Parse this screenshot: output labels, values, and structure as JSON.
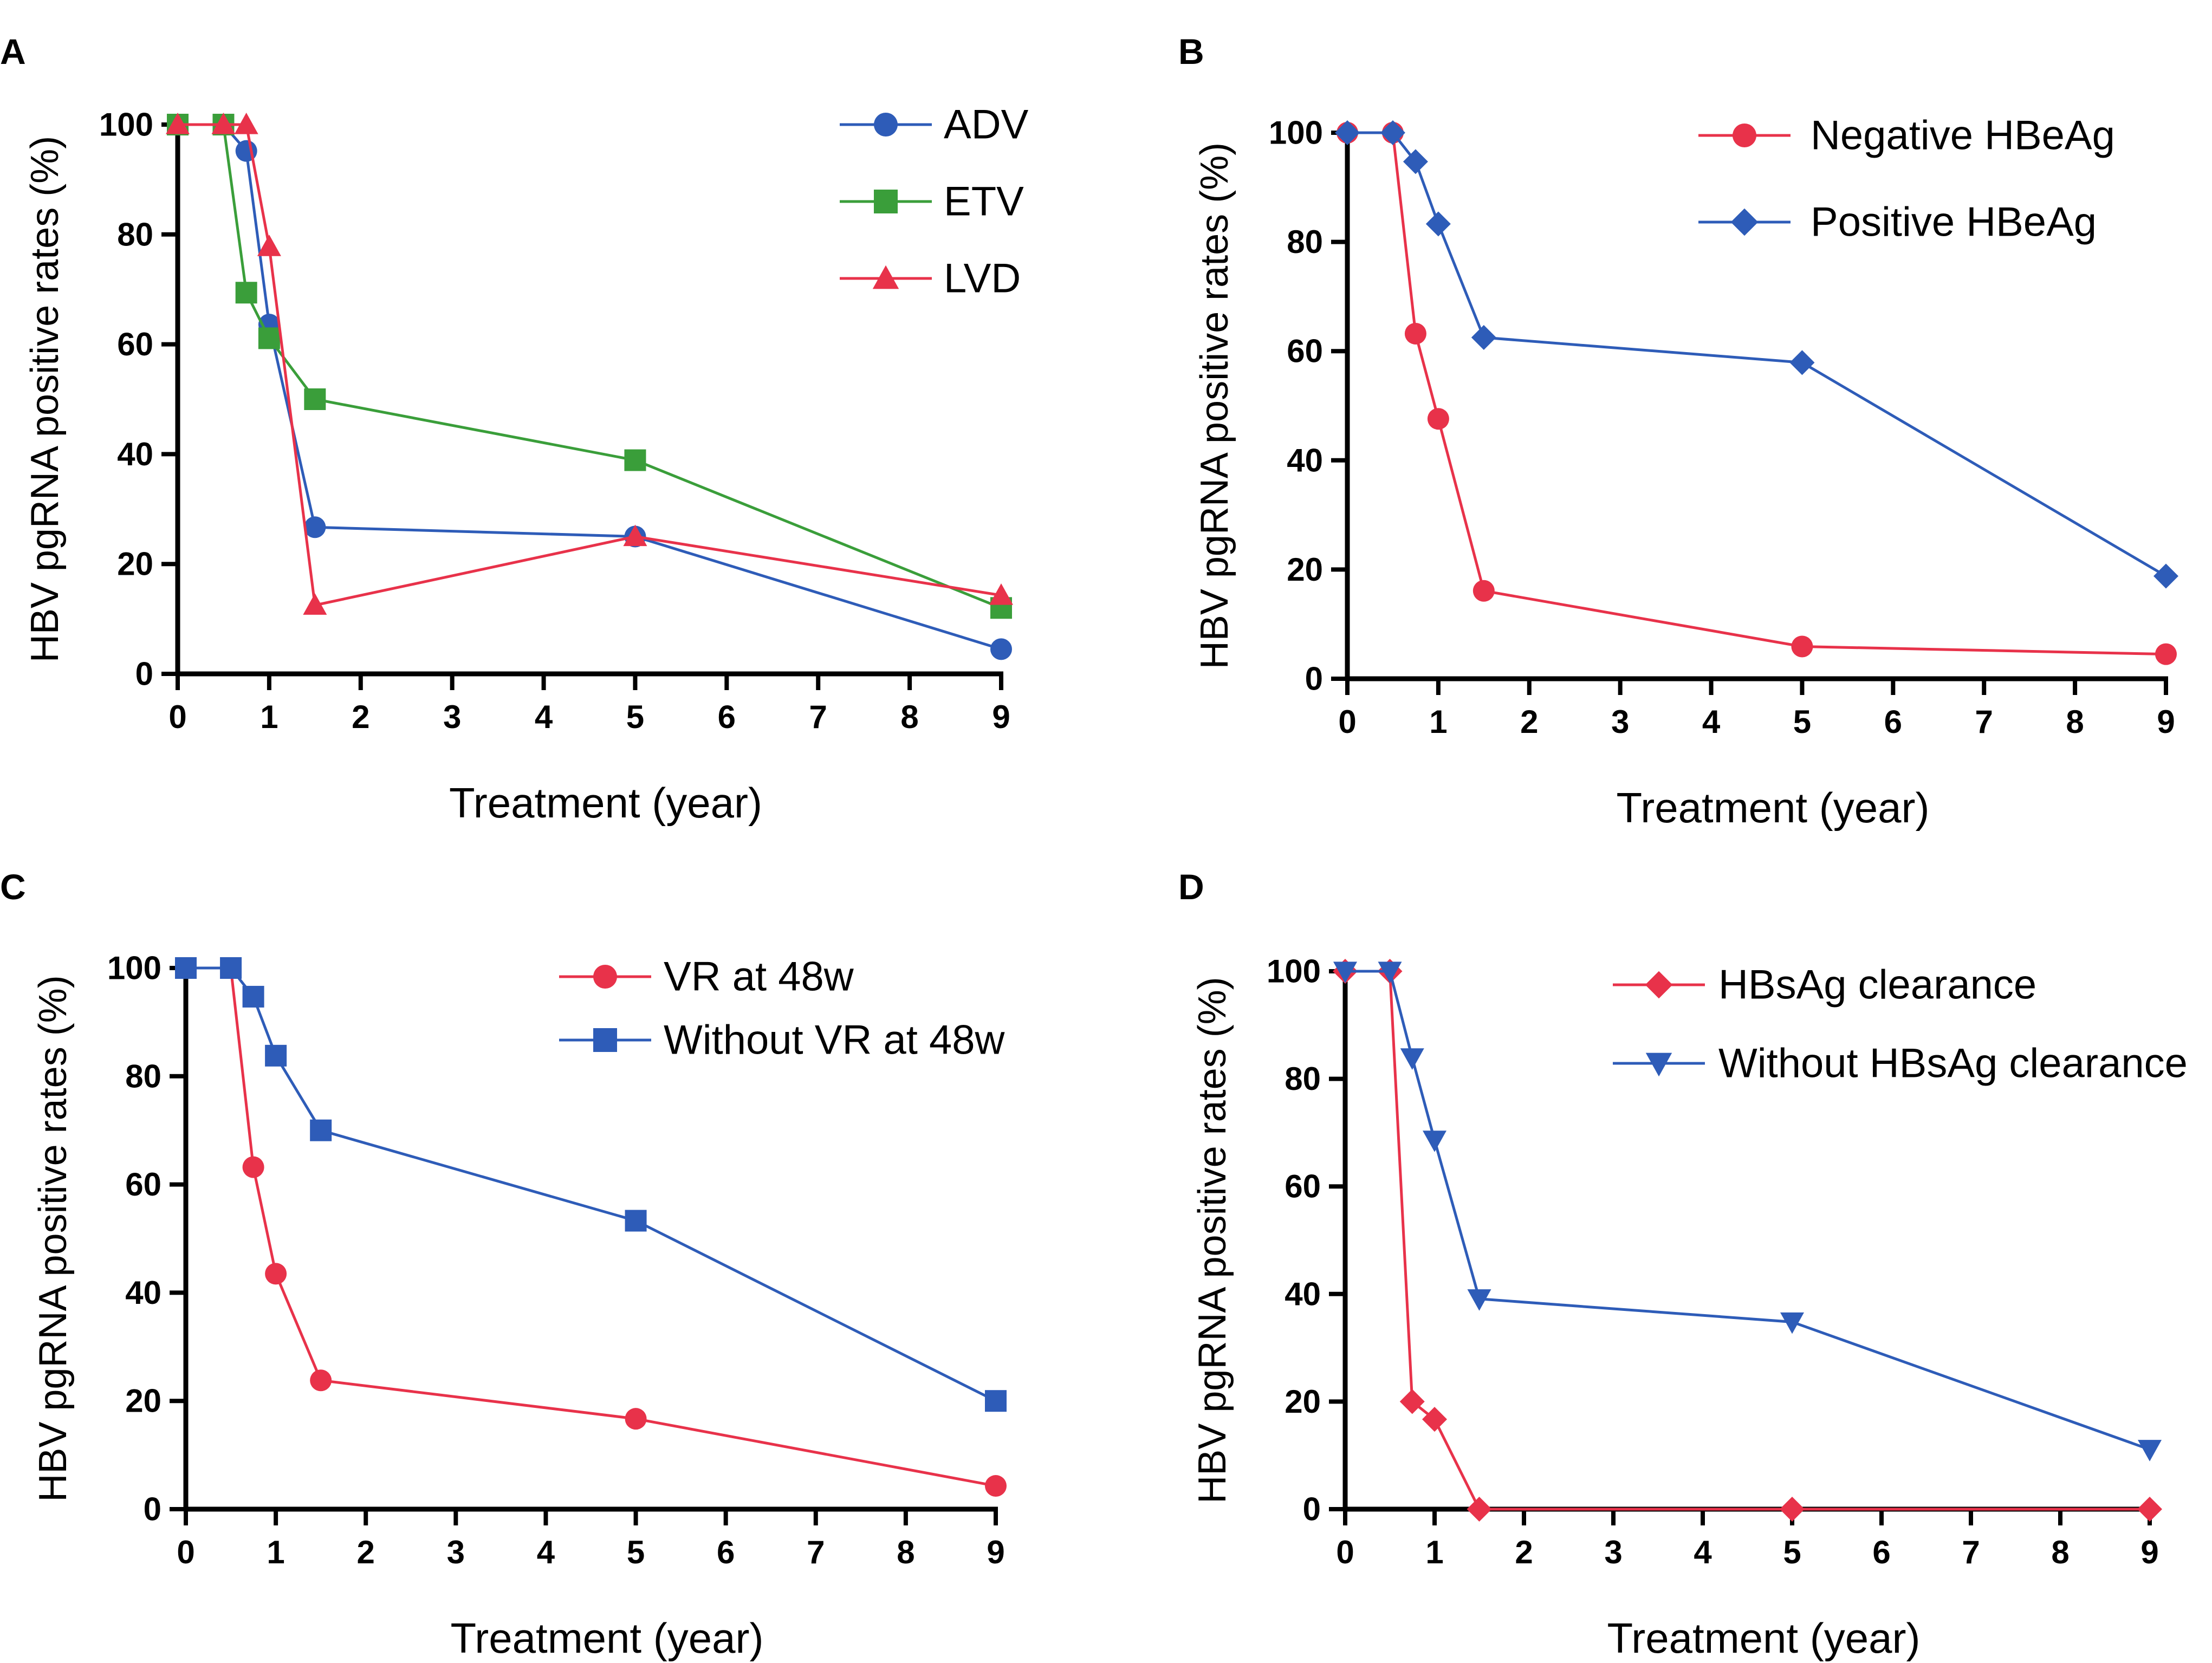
{
  "chart_data": [
    {
      "panel": "A",
      "type": "line",
      "xlabel": "Treatment (year)",
      "ylabel": "HBV pgRNA positive rates  (%)",
      "xlim": [
        0,
        9
      ],
      "ylim": [
        0,
        100
      ],
      "xticks": [
        "0",
        "1",
        "2",
        "3",
        "4",
        "5",
        "6",
        "7",
        "8",
        "9"
      ],
      "yticks": [
        "0",
        "20",
        "40",
        "60",
        "80",
        "100"
      ],
      "legend_position": "top-right",
      "series": [
        {
          "name": "ADV",
          "color": "#2e5cb8",
          "marker": "circle",
          "points": [
            [
              0,
              100
            ],
            [
              0.5,
              100
            ],
            [
              0.75,
              95.2
            ],
            [
              1,
              63.6
            ],
            [
              1.5,
              26.7
            ],
            [
              5,
              25
            ],
            [
              9,
              4.5
            ]
          ]
        },
        {
          "name": "ETV",
          "color": "#3a9e3a",
          "marker": "square",
          "points": [
            [
              0,
              100
            ],
            [
              0.5,
              100
            ],
            [
              0.75,
              69.4
            ],
            [
              1,
              61.1
            ],
            [
              1.5,
              50
            ],
            [
              5,
              38.9
            ],
            [
              9,
              12
            ]
          ]
        },
        {
          "name": "LVD",
          "color": "#e8324a",
          "marker": "triangle-up",
          "points": [
            [
              0,
              100
            ],
            [
              0.5,
              100
            ],
            [
              0.75,
              100
            ],
            [
              1,
              77.8
            ],
            [
              1.5,
              12.5
            ],
            [
              5,
              25
            ],
            [
              9,
              14.3
            ]
          ]
        }
      ]
    },
    {
      "panel": "B",
      "type": "line",
      "xlabel": "Treatment (year)",
      "ylabel": "HBV pgRNA positive rates  (%)",
      "xlim": [
        0,
        9
      ],
      "ylim": [
        0,
        100
      ],
      "xticks": [
        "0",
        "1",
        "2",
        "3",
        "4",
        "5",
        "6",
        "7",
        "8",
        "9"
      ],
      "yticks": [
        "0",
        "20",
        "40",
        "60",
        "80",
        "100"
      ],
      "legend_position": "top-right",
      "series": [
        {
          "name": "Negative HBeAg",
          "color": "#e8324a",
          "marker": "circle",
          "points": [
            [
              0,
              100
            ],
            [
              0.5,
              100
            ],
            [
              0.75,
              63.2
            ],
            [
              1,
              47.6
            ],
            [
              1.5,
              16.1
            ],
            [
              5,
              5.9
            ],
            [
              9,
              4.5
            ]
          ]
        },
        {
          "name": "Positive HBeAg",
          "color": "#2e5cb8",
          "marker": "diamond",
          "points": [
            [
              0,
              100
            ],
            [
              0.5,
              100
            ],
            [
              0.75,
              94.7
            ],
            [
              1,
              83.3
            ],
            [
              1.5,
              62.5
            ],
            [
              5,
              57.9
            ],
            [
              9,
              18.8
            ]
          ]
        }
      ]
    },
    {
      "panel": "C",
      "type": "line",
      "xlabel": "Treatment (year)",
      "ylabel": "HBV pgRNA positive rates  (%)",
      "xlim": [
        0,
        9
      ],
      "ylim": [
        0,
        100
      ],
      "xticks": [
        "0",
        "1",
        "2",
        "3",
        "4",
        "5",
        "6",
        "7",
        "8",
        "9"
      ],
      "yticks": [
        "0",
        "20",
        "40",
        "60",
        "80",
        "100"
      ],
      "legend_position": "top-right",
      "series": [
        {
          "name": "VR at 48w",
          "color": "#e8324a",
          "marker": "circle",
          "points": [
            [
              0,
              100
            ],
            [
              0.5,
              100
            ],
            [
              0.75,
              63.2
            ],
            [
              1,
              43.5
            ],
            [
              1.5,
              23.8
            ],
            [
              5,
              16.7
            ],
            [
              9,
              4.3
            ]
          ]
        },
        {
          "name": "Without VR at 48w",
          "color": "#2e5cb8",
          "marker": "square",
          "points": [
            [
              0,
              100
            ],
            [
              0.5,
              100
            ],
            [
              0.75,
              94.7
            ],
            [
              1,
              83.8
            ],
            [
              1.5,
              70
            ],
            [
              5,
              53.3
            ],
            [
              9,
              20
            ]
          ]
        }
      ]
    },
    {
      "panel": "D",
      "type": "line",
      "xlabel": "Treatment (year)",
      "ylabel": "HBV pgRNA positive rates  (%)",
      "xlim": [
        0,
        9
      ],
      "ylim": [
        0,
        100
      ],
      "xticks": [
        "0",
        "1",
        "2",
        "3",
        "4",
        "5",
        "6",
        "7",
        "8",
        "9"
      ],
      "yticks": [
        "0",
        "20",
        "40",
        "60",
        "80",
        "100"
      ],
      "legend_position": "top-right",
      "series": [
        {
          "name": "HBsAg clearance",
          "color": "#e8324a",
          "marker": "diamond",
          "points": [
            [
              0,
              100
            ],
            [
              0.5,
              100
            ],
            [
              0.75,
              20
            ],
            [
              1,
              16.7
            ],
            [
              1.5,
              0
            ],
            [
              5,
              0
            ],
            [
              9,
              0
            ]
          ]
        },
        {
          "name": "Without HBsAg clearance",
          "color": "#2e5cb8",
          "marker": "triangle-down",
          "points": [
            [
              0,
              100
            ],
            [
              0.5,
              100
            ],
            [
              0.75,
              83.9
            ],
            [
              1,
              68.6
            ],
            [
              1.5,
              39.1
            ],
            [
              5,
              34.8
            ],
            [
              9,
              11.1
            ]
          ]
        }
      ]
    }
  ]
}
